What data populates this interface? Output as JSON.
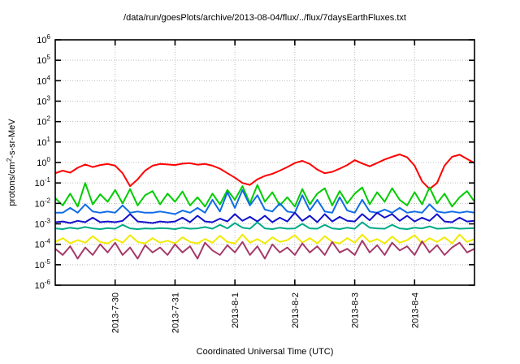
{
  "page": {
    "background": "#ffffff",
    "frame_color": "#000000",
    "grid_color": "#bdbdbd",
    "text_color": "#000000"
  },
  "chart_data": {
    "type": "line",
    "title": "/data/run/goesPlots/archive/2013-08-04/flux/../flux/7daysEarthFluxes.txt",
    "xlabel": "Coordinated Universal Time (UTC)",
    "ylabel": "protons/cm2-s-sr-MeV",
    "ylabel_parts": {
      "pre": "protons/cm",
      "sup": "2",
      "post": "-s-sr-MeV"
    },
    "y_scale": "log10",
    "y_tick_base": "10",
    "y_tick_exponents": [
      6,
      5,
      4,
      3,
      2,
      1,
      0,
      -1,
      -2,
      -3,
      -4,
      -5,
      -6
    ],
    "ylim_exponents": [
      -6,
      6
    ],
    "grid": "dotted",
    "legend": "none",
    "x_range_hours": [
      0,
      168
    ],
    "x_epoch": "2013-7-29 00:00 UTC",
    "x_ticks": [
      {
        "hour": 24,
        "label": "2013-7-30"
      },
      {
        "hour": 48,
        "label": "2013-7-31"
      },
      {
        "hour": 72,
        "label": "2013-8-1"
      },
      {
        "hour": 96,
        "label": "2013-8-2"
      },
      {
        "hour": 120,
        "label": "2013-8-3"
      },
      {
        "hour": 144,
        "label": "2013-8-4"
      }
    ],
    "sample_start_hour": 0,
    "sample_step_hours": 3,
    "series": [
      {
        "name": "red-channel",
        "color": "#ff0000",
        "values": [
          0.3,
          0.4,
          0.32,
          0.55,
          0.8,
          0.6,
          0.75,
          0.85,
          0.7,
          0.3,
          0.07,
          0.15,
          0.4,
          0.7,
          0.85,
          0.8,
          0.75,
          0.88,
          0.92,
          0.78,
          0.85,
          0.7,
          0.5,
          0.3,
          0.18,
          0.1,
          0.08,
          0.15,
          0.22,
          0.28,
          0.4,
          0.6,
          0.95,
          1.2,
          0.85,
          0.45,
          0.3,
          0.35,
          0.5,
          0.75,
          1.3,
          0.9,
          0.65,
          0.95,
          1.4,
          1.9,
          2.5,
          1.8,
          0.7,
          0.12,
          0.05,
          0.1,
          0.7,
          1.9,
          2.4,
          1.5,
          0.95
        ]
      },
      {
        "name": "green-channel",
        "color": "#00cc00",
        "values": [
          0.018,
          0.008,
          0.03,
          0.007,
          0.1,
          0.009,
          0.028,
          0.012,
          0.045,
          0.01,
          0.05,
          0.008,
          0.025,
          0.04,
          0.009,
          0.03,
          0.012,
          0.038,
          0.008,
          0.02,
          0.007,
          0.03,
          0.009,
          0.045,
          0.015,
          0.07,
          0.01,
          0.08,
          0.012,
          0.035,
          0.008,
          0.02,
          0.007,
          0.05,
          0.009,
          0.03,
          0.055,
          0.008,
          0.04,
          0.01,
          0.03,
          0.06,
          0.009,
          0.035,
          0.012,
          0.055,
          0.015,
          0.008,
          0.035,
          0.009,
          0.06,
          0.01,
          0.03,
          0.007,
          0.02,
          0.04,
          0.012
        ]
      },
      {
        "name": "lightblue-channel",
        "color": "#0f6ce6",
        "values": [
          0.0035,
          0.0035,
          0.006,
          0.0035,
          0.009,
          0.004,
          0.0035,
          0.004,
          0.0035,
          0.008,
          0.0035,
          0.004,
          0.0035,
          0.0035,
          0.004,
          0.0035,
          0.003,
          0.0045,
          0.0035,
          0.006,
          0.0035,
          0.015,
          0.004,
          0.035,
          0.006,
          0.045,
          0.008,
          0.025,
          0.005,
          0.004,
          0.01,
          0.004,
          0.0035,
          0.025,
          0.0045,
          0.015,
          0.004,
          0.0035,
          0.02,
          0.0045,
          0.0035,
          0.015,
          0.004,
          0.0035,
          0.005,
          0.0035,
          0.006,
          0.0035,
          0.004,
          0.0035,
          0.009,
          0.004,
          0.0035,
          0.004,
          0.0035,
          0.004,
          0.0035
        ]
      },
      {
        "name": "darkblue-channel",
        "color": "#1111cc",
        "values": [
          0.0012,
          0.0013,
          0.0011,
          0.0014,
          0.0012,
          0.002,
          0.0012,
          0.0013,
          0.0012,
          0.0014,
          0.003,
          0.0013,
          0.0012,
          0.0011,
          0.0013,
          0.0012,
          0.0013,
          0.002,
          0.0012,
          0.0025,
          0.0013,
          0.0012,
          0.0018,
          0.0013,
          0.003,
          0.0014,
          0.0022,
          0.0013,
          0.0025,
          0.0012,
          0.002,
          0.0013,
          0.0035,
          0.0014,
          0.0025,
          0.0012,
          0.003,
          0.0013,
          0.0022,
          0.0014,
          0.0013,
          0.003,
          0.0015,
          0.0035,
          0.002,
          0.003,
          0.0014,
          0.0025,
          0.0013,
          0.002,
          0.0014,
          0.003,
          0.0013,
          0.0012,
          0.002,
          0.0013,
          0.0014
        ]
      },
      {
        "name": "teal-channel",
        "color": "#00aa88",
        "values": [
          0.0006,
          0.00055,
          0.00065,
          0.00058,
          0.0007,
          0.0006,
          0.00055,
          0.00062,
          0.00058,
          0.0009,
          0.0006,
          0.00055,
          0.0006,
          0.00058,
          0.00062,
          0.0006,
          0.00055,
          0.00065,
          0.00058,
          0.0006,
          0.0007,
          0.00058,
          0.0009,
          0.0006,
          0.0011,
          0.00065,
          0.00058,
          0.0012,
          0.0006,
          0.00055,
          0.00065,
          0.00058,
          0.0006,
          0.001,
          0.0006,
          0.00058,
          0.0009,
          0.0006,
          0.00055,
          0.00065,
          0.00058,
          0.0012,
          0.00065,
          0.0006,
          0.00058,
          0.0009,
          0.0006,
          0.00055,
          0.00065,
          0.0006,
          0.00075,
          0.00058,
          0.0006,
          0.00065,
          0.00058,
          0.0006,
          0.00062
        ]
      },
      {
        "name": "yellow-channel",
        "color": "#f2ea00",
        "values": [
          0.00013,
          0.0002,
          0.00011,
          0.00016,
          0.00012,
          0.00025,
          0.00013,
          0.00011,
          0.00018,
          0.00012,
          0.00028,
          0.00013,
          0.00011,
          0.0002,
          0.00012,
          0.00015,
          0.00011,
          0.00022,
          0.00013,
          0.00011,
          0.00018,
          0.00012,
          0.00026,
          0.00013,
          0.00011,
          0.0003,
          0.00012,
          0.00018,
          0.00011,
          0.00022,
          0.00013,
          0.00016,
          0.00028,
          0.00012,
          0.0002,
          0.00011,
          0.00025,
          0.00013,
          0.00011,
          0.0002,
          0.00012,
          0.0003,
          0.00013,
          0.00018,
          0.00011,
          0.00024,
          0.00012,
          0.00016,
          0.00028,
          0.00011,
          0.0002,
          0.00013,
          0.00022,
          0.00011,
          0.0003,
          0.00013,
          0.00018
        ]
      },
      {
        "name": "maroon-channel",
        "color": "#a53a6a",
        "values": [
          6e-05,
          3e-05,
          8e-05,
          2e-05,
          7e-05,
          3e-05,
          0.0001,
          4e-05,
          0.00012,
          3e-05,
          7e-05,
          2e-05,
          9e-05,
          4e-05,
          7e-05,
          3e-05,
          0.0001,
          4e-05,
          8e-05,
          2e-05,
          0.00012,
          5e-05,
          3e-05,
          9e-05,
          4e-05,
          0.00013,
          3e-05,
          8e-05,
          2e-05,
          0.0001,
          4e-05,
          7e-05,
          3e-05,
          0.00011,
          4e-05,
          8e-05,
          3e-05,
          0.00013,
          4e-05,
          6e-05,
          3e-05,
          0.00015,
          4e-05,
          9e-05,
          3e-05,
          0.00012,
          5e-05,
          8e-05,
          3e-05,
          0.00014,
          4e-05,
          9e-05,
          3e-05,
          7e-05,
          0.00012,
          4e-05,
          6e-05
        ]
      }
    ]
  }
}
